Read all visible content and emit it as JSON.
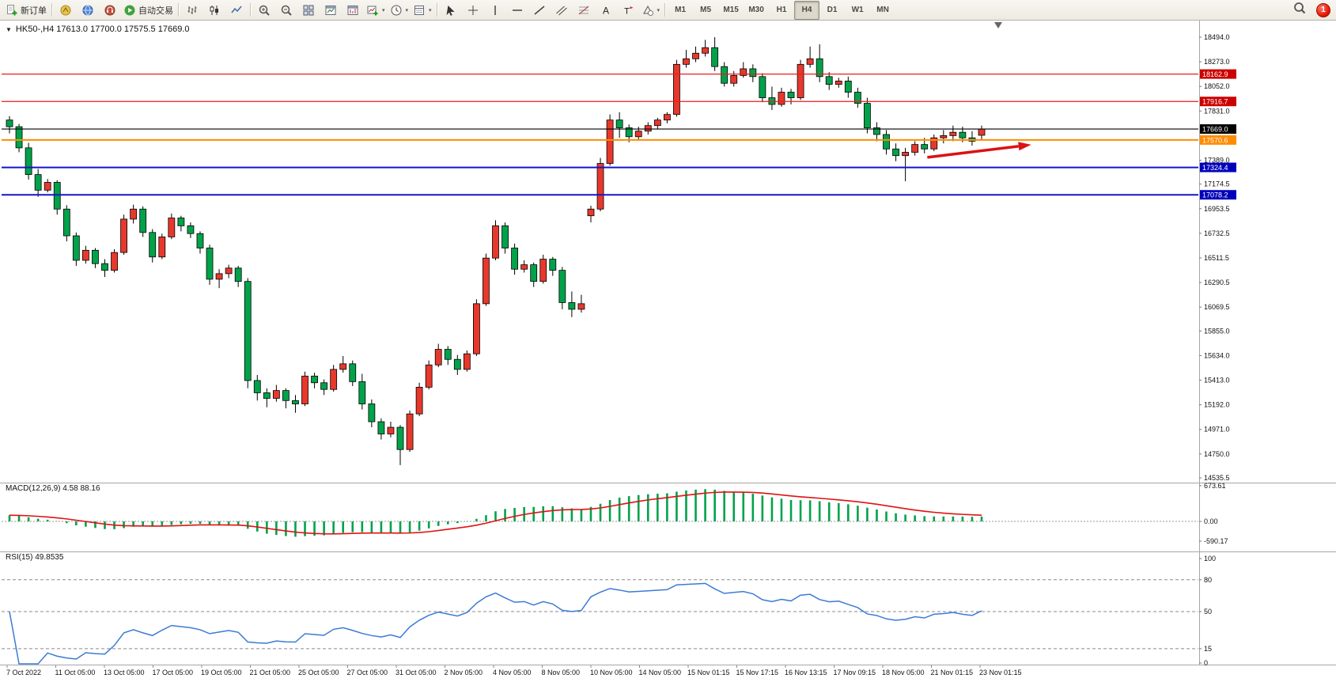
{
  "icons": {
    "menu_arrow": "▼",
    "caret": "▾"
  },
  "toolbar": {
    "notification_count": "1",
    "groups": [
      {
        "name": "orders",
        "buttons": [
          {
            "name": "new-order-button",
            "icon": "doc-plus",
            "label": "新订单"
          }
        ]
      },
      {
        "name": "services",
        "buttons": [
          {
            "name": "market-watch-button",
            "icon": "scales"
          },
          {
            "name": "community-button",
            "icon": "globe"
          },
          {
            "name": "support-button",
            "icon": "headset"
          },
          {
            "name": "autotrading-button",
            "icon": "play",
            "label": "自动交易"
          }
        ]
      },
      {
        "name": "chart-types",
        "buttons": [
          {
            "name": "bar-chart-button",
            "icon": "chart-bars"
          },
          {
            "name": "candlestick-chart-button",
            "icon": "chart-candles"
          },
          {
            "name": "line-chart-button",
            "icon": "chart-line"
          }
        ]
      },
      {
        "name": "chart-tools",
        "buttons": [
          {
            "name": "zoom-in-button",
            "icon": "zoom-in"
          },
          {
            "name": "zoom-out-button",
            "icon": "zoom-out"
          },
          {
            "name": "tile-windows-button",
            "icon": "tile"
          },
          {
            "name": "auto-scroll-button",
            "icon": "chart-window"
          },
          {
            "name": "chart-shift-button",
            "icon": "chart-window2"
          },
          {
            "name": "new-chart-button",
            "icon": "new-chart",
            "caret": true
          },
          {
            "name": "periods-button",
            "icon": "clock",
            "caret": true
          },
          {
            "name": "templates-button",
            "icon": "template",
            "caret": true
          }
        ]
      },
      {
        "name": "objects",
        "buttons": [
          {
            "name": "cursor-button",
            "icon": "cursor"
          },
          {
            "name": "crosshair-button",
            "icon": "crosshair"
          },
          {
            "name": "vertical-line-button",
            "icon": "vline"
          },
          {
            "name": "horizontal-line-button",
            "icon": "hline"
          },
          {
            "name": "trendline-button",
            "icon": "trendline"
          },
          {
            "name": "channel-button",
            "icon": "channel"
          },
          {
            "name": "fibonacci-button",
            "icon": "fibo"
          },
          {
            "name": "text-button",
            "icon": "text-a"
          },
          {
            "name": "label-button",
            "icon": "label-t"
          },
          {
            "name": "shapes-button",
            "icon": "shapes",
            "caret": true
          }
        ]
      },
      {
        "name": "timeframes",
        "buttons": [
          {
            "name": "timeframe-m1-button",
            "label": "M1"
          },
          {
            "name": "timeframe-m5-button",
            "label": "M5"
          },
          {
            "name": "timeframe-m15-button",
            "label": "M15"
          },
          {
            "name": "timeframe-m30-button",
            "label": "M30"
          },
          {
            "name": "timeframe-h1-button",
            "label": "H1"
          },
          {
            "name": "timeframe-h4-button",
            "label": "H4",
            "active": true
          },
          {
            "name": "timeframe-d1-button",
            "label": "D1"
          },
          {
            "name": "timeframe-w1-button",
            "label": "W1"
          },
          {
            "name": "timeframe-mn-button",
            "label": "MN"
          }
        ]
      }
    ]
  },
  "chart": {
    "title_line": "HK50-,H4  17613.0 17700.0 17575.5 17669.0"
  },
  "indicators": {
    "macd": {
      "label": "MACD(12,26,9) 4.58 88.16"
    },
    "rsi": {
      "label": "RSI(15) 49.8535"
    }
  },
  "chart_data": {
    "type": "candlestick",
    "symbol": "HK50-",
    "timeframe": "H4",
    "last_ohlc": {
      "open": 17613.0,
      "high": 17700.0,
      "low": 17575.5,
      "close": 17669.0
    },
    "background": "#ffffff",
    "bull_color": "#e8382c",
    "bear_color": "#00a24a",
    "outline_color": "#000000",
    "axis_text_color": "#111111",
    "y_axis_labels": [
      [
        "18494.0",
        18494.0
      ],
      [
        "18273.0",
        18273.0
      ],
      [
        "18052.0",
        18052.0
      ],
      [
        "17831.0",
        17831.0
      ],
      [
        "17389.0",
        17389.0
      ],
      [
        "17174.5",
        17174.5
      ],
      [
        "16953.5",
        16953.5
      ],
      [
        "16732.5",
        16732.5
      ],
      [
        "16511.5",
        16511.5
      ],
      [
        "16290.5",
        16290.5
      ],
      [
        "16069.5",
        16069.5
      ],
      [
        "15855.0",
        15855.0
      ],
      [
        "15634.0",
        15634.0
      ],
      [
        "15413.0",
        15413.0
      ],
      [
        "15192.0",
        15192.0
      ],
      [
        "14971.0",
        14971.0
      ],
      [
        "14750.0",
        14750.0
      ],
      [
        "14535.5",
        14535.5
      ]
    ],
    "x_axis_labels": [
      "7 Oct 2022",
      "11 Oct 05:00",
      "13 Oct 05:00",
      "17 Oct 05:00",
      "19 Oct 05:00",
      "21 Oct 05:00",
      "25 Oct 05:00",
      "27 Oct 05:00",
      "31 Oct 05:00",
      "2 Nov 05:00",
      "4 Nov 05:00",
      "8 Nov 05:00",
      "10 Nov 05:00",
      "14 Nov 05:00",
      "15 Nov 01:15",
      "15 Nov 17:15",
      "16 Nov 13:15",
      "17 Nov 09:15",
      "18 Nov 05:00",
      "21 Nov 01:15",
      "23 Nov 01:15"
    ],
    "hlines": [
      {
        "price": 18162.9,
        "label": "18162.9",
        "color": "#ee1c1c",
        "tag_bg": "#cc0000",
        "width": 1.2
      },
      {
        "price": 17916.7,
        "label": "17916.7",
        "color": "#ee1c1c",
        "tag_bg": "#cc0000",
        "width": 1.2
      },
      {
        "price": 17669.0,
        "label": "17669.0",
        "color": "#000000",
        "tag_bg": "#000000",
        "width": 1.2
      },
      {
        "price": 17570.6,
        "label": "17570.6",
        "color": "#ff8c00",
        "tag_bg": "#ff8c00",
        "width": 2
      },
      {
        "price": 17324.4,
        "label": "17324.4",
        "color": "#1515c8",
        "tag_bg": "#0000bb",
        "width": 2
      },
      {
        "price": 17078.2,
        "label": "17078.2",
        "color": "#1515c8",
        "tag_bg": "#0000bb",
        "width": 2
      }
    ],
    "trend_arrow": {
      "from_index": 96.3,
      "from_price": 17415,
      "to_index": 107.2,
      "to_price": 17528,
      "color": "#dd1111"
    },
    "macd": {
      "params": "12,26,9",
      "values_label": "4.58 88.16",
      "axis_labels": [
        [
          "673.61",
          673.61
        ],
        [
          "0.00",
          0
        ],
        [
          "-590.17",
          -590.17
        ]
      ],
      "histogram_color": "#00a24a",
      "signal_color": "#e01212"
    },
    "rsi": {
      "period": 15,
      "value_label": "49.8535",
      "axis_labels": [
        [
          "100",
          100
        ],
        [
          "80",
          80
        ],
        [
          "50",
          50
        ],
        [
          "15",
          15
        ],
        [
          "0",
          0
        ]
      ],
      "levels": [
        80,
        50,
        15
      ],
      "line_color": "#3b7bd4"
    },
    "candles": [
      [
        17750,
        17785,
        17630,
        17690
      ],
      [
        17690,
        17715,
        17460,
        17500
      ],
      [
        17500,
        17545,
        17215,
        17260
      ],
      [
        17260,
        17310,
        17060,
        17120
      ],
      [
        17120,
        17220,
        17100,
        17190
      ],
      [
        17190,
        17210,
        16900,
        16950
      ],
      [
        16950,
        16985,
        16660,
        16710
      ],
      [
        16710,
        16740,
        16440,
        16490
      ],
      [
        16490,
        16620,
        16460,
        16580
      ],
      [
        16580,
        16600,
        16420,
        16460
      ],
      [
        16460,
        16500,
        16340,
        16400
      ],
      [
        16400,
        16590,
        16380,
        16560
      ],
      [
        16560,
        16900,
        16540,
        16860
      ],
      [
        16860,
        16990,
        16820,
        16950
      ],
      [
        16950,
        16975,
        16700,
        16740
      ],
      [
        16740,
        16770,
        16470,
        16520
      ],
      [
        16520,
        16730,
        16500,
        16700
      ],
      [
        16700,
        16910,
        16680,
        16870
      ],
      [
        16870,
        16890,
        16750,
        16800
      ],
      [
        16800,
        16830,
        16690,
        16730
      ],
      [
        16730,
        16750,
        16550,
        16600
      ],
      [
        16600,
        16630,
        16270,
        16320
      ],
      [
        16320,
        16410,
        16240,
        16370
      ],
      [
        16370,
        16450,
        16330,
        16420
      ],
      [
        16420,
        16440,
        16250,
        16300
      ],
      [
        16300,
        16330,
        15340,
        15410
      ],
      [
        15410,
        15460,
        15230,
        15300
      ],
      [
        15300,
        15340,
        15170,
        15250
      ],
      [
        15250,
        15370,
        15220,
        15320
      ],
      [
        15320,
        15340,
        15160,
        15230
      ],
      [
        15230,
        15280,
        15120,
        15200
      ],
      [
        15200,
        15490,
        15180,
        15450
      ],
      [
        15450,
        15480,
        15340,
        15390
      ],
      [
        15390,
        15420,
        15280,
        15330
      ],
      [
        15330,
        15550,
        15310,
        15510
      ],
      [
        15510,
        15630,
        15480,
        15560
      ],
      [
        15560,
        15590,
        15360,
        15400
      ],
      [
        15400,
        15470,
        15150,
        15200
      ],
      [
        15200,
        15240,
        14990,
        15040
      ],
      [
        15040,
        15070,
        14880,
        14930
      ],
      [
        14930,
        15040,
        14900,
        14990
      ],
      [
        14990,
        15010,
        14650,
        14790
      ],
      [
        14790,
        15140,
        14770,
        15110
      ],
      [
        15110,
        15390,
        15090,
        15350
      ],
      [
        15350,
        15590,
        15330,
        15550
      ],
      [
        15550,
        15740,
        15530,
        15690
      ],
      [
        15690,
        15720,
        15550,
        15600
      ],
      [
        15600,
        15640,
        15460,
        15510
      ],
      [
        15510,
        15680,
        15490,
        15650
      ],
      [
        15650,
        16140,
        15630,
        16100
      ],
      [
        16100,
        16550,
        16080,
        16510
      ],
      [
        16510,
        16850,
        16490,
        16800
      ],
      [
        16800,
        16830,
        16550,
        16600
      ],
      [
        16600,
        16640,
        16360,
        16410
      ],
      [
        16410,
        16490,
        16380,
        16450
      ],
      [
        16450,
        16470,
        16250,
        16300
      ],
      [
        16300,
        16540,
        16280,
        16500
      ],
      [
        16500,
        16520,
        16350,
        16400
      ],
      [
        16400,
        16430,
        16050,
        16110
      ],
      [
        16110,
        16210,
        15980,
        16050
      ],
      [
        16050,
        16180,
        16020,
        16100
      ],
      [
        16890,
        16980,
        16830,
        16950
      ],
      [
        16950,
        17410,
        16930,
        17360
      ],
      [
        17360,
        17800,
        17340,
        17750
      ],
      [
        17750,
        17820,
        17590,
        17680
      ],
      [
        17680,
        17710,
        17550,
        17600
      ],
      [
        17600,
        17690,
        17570,
        17650
      ],
      [
        17650,
        17730,
        17620,
        17700
      ],
      [
        17700,
        17770,
        17670,
        17750
      ],
      [
        17750,
        17820,
        17720,
        17800
      ],
      [
        17800,
        18290,
        17780,
        18250
      ],
      [
        18250,
        18380,
        18220,
        18300
      ],
      [
        18300,
        18410,
        18270,
        18350
      ],
      [
        18350,
        18470,
        18320,
        18400
      ],
      [
        18400,
        18494,
        18190,
        18230
      ],
      [
        18230,
        18270,
        18050,
        18080
      ],
      [
        18080,
        18190,
        18050,
        18150
      ],
      [
        18150,
        18270,
        18130,
        18210
      ],
      [
        18210,
        18250,
        18090,
        18140
      ],
      [
        18140,
        18170,
        17910,
        17950
      ],
      [
        17950,
        18050,
        17840,
        17890
      ],
      [
        17890,
        18040,
        17870,
        18000
      ],
      [
        18000,
        18030,
        17890,
        17950
      ],
      [
        17950,
        18290,
        17930,
        18250
      ],
      [
        18250,
        18410,
        18220,
        18300
      ],
      [
        18300,
        18430,
        18090,
        18140
      ],
      [
        18140,
        18180,
        18020,
        18070
      ],
      [
        18070,
        18130,
        18040,
        18100
      ],
      [
        18100,
        18140,
        17950,
        18000
      ],
      [
        18000,
        18040,
        17860,
        17900
      ],
      [
        17900,
        17950,
        17630,
        17680
      ],
      [
        17680,
        17730,
        17560,
        17620
      ],
      [
        17620,
        17660,
        17440,
        17490
      ],
      [
        17490,
        17540,
        17380,
        17430
      ],
      [
        17430,
        17500,
        17200,
        17460
      ],
      [
        17460,
        17560,
        17430,
        17530
      ],
      [
        17530,
        17590,
        17450,
        17490
      ],
      [
        17490,
        17620,
        17470,
        17590
      ],
      [
        17590,
        17660,
        17540,
        17610
      ],
      [
        17610,
        17700,
        17560,
        17640
      ],
      [
        17640,
        17690,
        17550,
        17590
      ],
      [
        17590,
        17650,
        17520,
        17560
      ],
      [
        17613,
        17700,
        17575.5,
        17669
      ]
    ]
  }
}
